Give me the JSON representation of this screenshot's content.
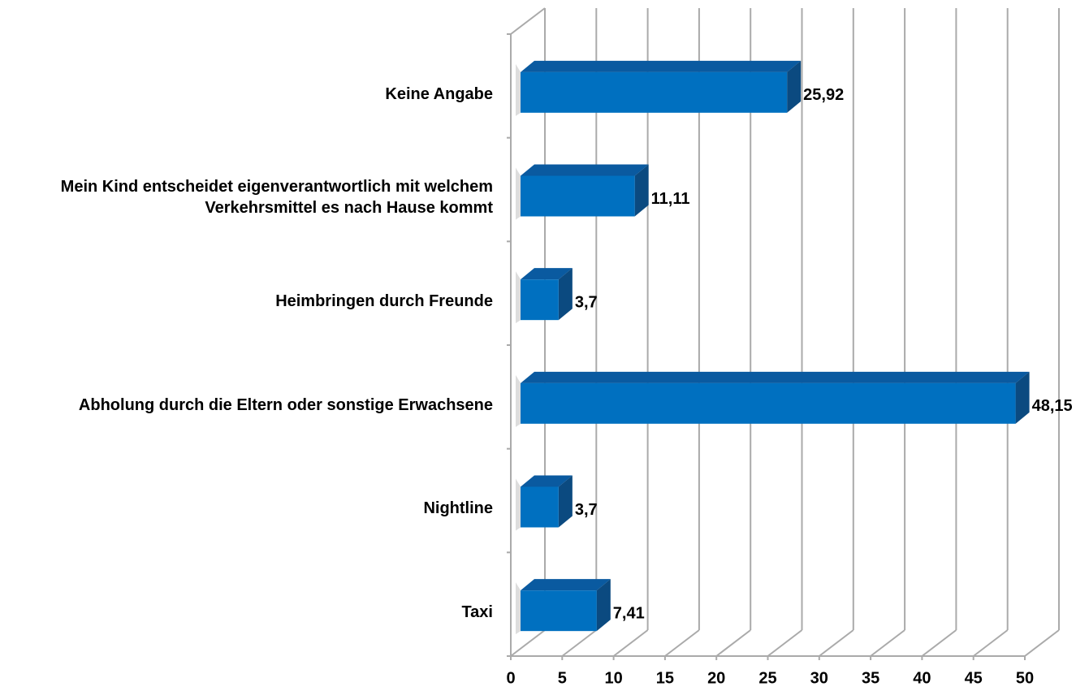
{
  "chart_data": {
    "type": "bar3d_horizontal",
    "categories": [
      "Keine Angabe",
      "Mein Kind entscheidet eigenverantwortlich mit welchem Verkehrsmittel es nach Hause kommt",
      "Heimbringen durch Freunde",
      "Abholung durch die Eltern oder sonstige Erwachsene",
      "Nightline",
      "Taxi"
    ],
    "values": [
      25.92,
      11.11,
      3.7,
      48.15,
      3.7,
      7.41
    ],
    "value_labels": [
      "25,92",
      "11,11",
      "3,7",
      "48,15",
      "3,7",
      "7,41"
    ],
    "color": "#0070c0",
    "xlim": [
      0,
      50
    ],
    "xticks": [
      0,
      5,
      10,
      15,
      20,
      25,
      30,
      35,
      40,
      45,
      50
    ],
    "grid": true
  }
}
